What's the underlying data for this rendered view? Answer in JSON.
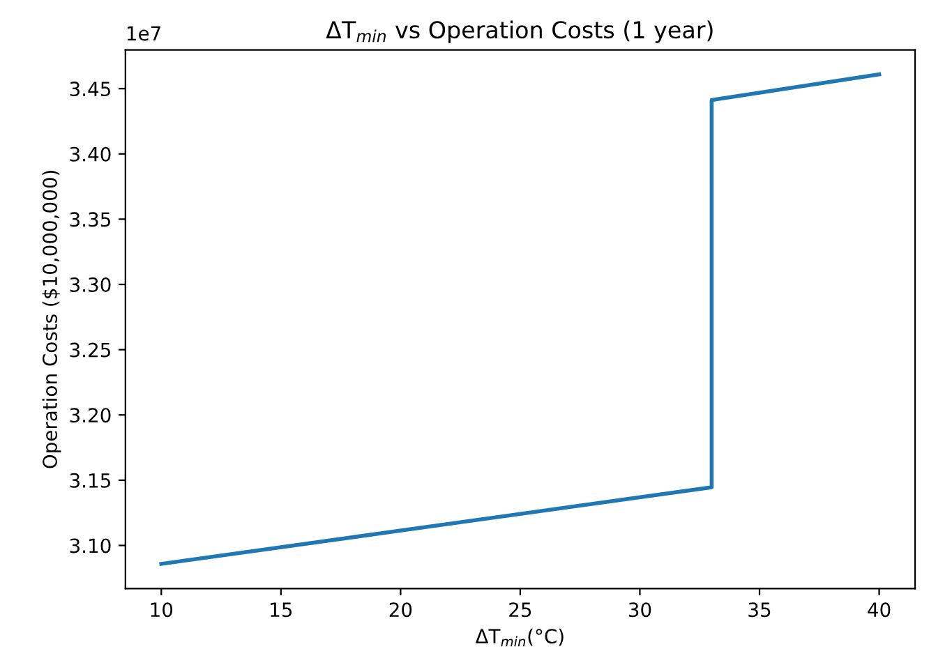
{
  "chart_data": {
    "type": "line",
    "title": "ΔT$_{min}$ vs Operation Costs (1 year)",
    "xlabel": "ΔT$_{min}$(°C)",
    "ylabel": "Operation Costs ($10,000,000)",
    "annotations": [
      "1e7"
    ],
    "x": [
      10,
      33,
      33,
      40
    ],
    "series": [
      {
        "color": "#1f77b4",
        "values": [
          3.0859,
          3.1446,
          3.4413,
          3.4609
        ]
      }
    ],
    "xlim": [
      8.5,
      41.5
    ],
    "xticks": [
      10,
      15,
      20,
      25,
      30,
      35,
      40
    ],
    "ylim": [
      3.067,
      3.4797
    ],
    "yticks": [
      {
        "value": 3.1,
        "label": "3.10"
      },
      {
        "value": 3.15,
        "label": "3.15"
      },
      {
        "value": 3.2,
        "label": "3.20"
      },
      {
        "value": 3.25,
        "label": "3.25"
      },
      {
        "value": 3.3,
        "label": "3.30"
      },
      {
        "value": 3.35,
        "label": "3.35"
      },
      {
        "value": 3.4,
        "label": "3.40"
      },
      {
        "value": 3.45,
        "label": "3.45"
      }
    ],
    "grid": false,
    "legend": false
  }
}
